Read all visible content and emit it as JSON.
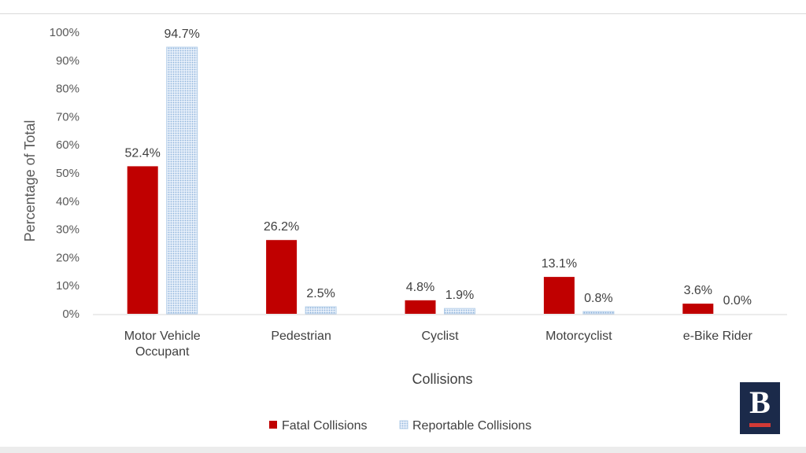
{
  "chart_data": {
    "type": "bar",
    "categories": [
      [
        "Motor Vehicle",
        "Occupant"
      ],
      [
        "Pedestrian"
      ],
      [
        "Cyclist"
      ],
      [
        "Motorcyclist"
      ],
      [
        "e-Bike Rider"
      ]
    ],
    "series": [
      {
        "name": "Fatal Collisions",
        "values": [
          52.4,
          26.2,
          4.8,
          13.1,
          3.6
        ],
        "labels": [
          "52.4%",
          "26.2%",
          "4.8%",
          "13.1%",
          "3.6%"
        ],
        "color": "#c00000",
        "pattern": "solid"
      },
      {
        "name": "Reportable Collisions",
        "values": [
          94.7,
          2.5,
          1.9,
          0.8,
          0.0
        ],
        "labels": [
          "94.7%",
          "2.5%",
          "1.9%",
          "0.8%",
          "0.0%"
        ],
        "color": "#9dc3e6",
        "pattern": "dotted"
      }
    ],
    "title": "",
    "xlabel": "Collisions",
    "ylabel": "Percentage of Total",
    "ylim": [
      0,
      100
    ],
    "yticks": [
      "0%",
      "10%",
      "20%",
      "30%",
      "40%",
      "50%",
      "60%",
      "70%",
      "80%",
      "90%",
      "100%"
    ],
    "grid": false,
    "legend_position": "bottom"
  },
  "logo": {
    "letter": "B",
    "color": "#1b2a4a",
    "accent": "#d23a36"
  }
}
